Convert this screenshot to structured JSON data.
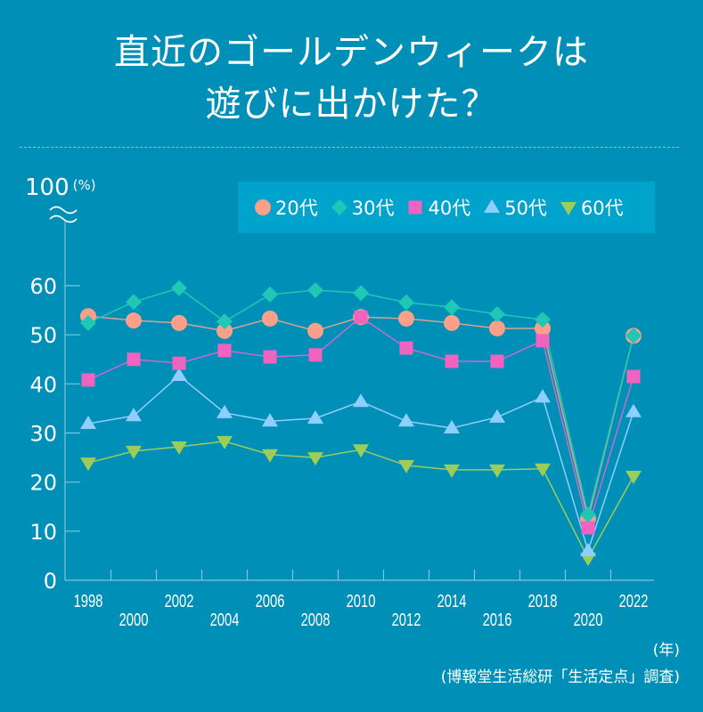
{
  "header": {
    "title_line1": "直近のゴールデンウィークは",
    "title_line2": "遊びに出かけた？"
  },
  "colors": {
    "background": "#008fb6",
    "legend_background": "#00a3cc",
    "axis": "#7fc6d9"
  },
  "y_axis_top_label": "100",
  "y_axis_unit": "(%)",
  "axis_break_icon": "wavy-axis-break",
  "x_unit_label": "(年)",
  "source_label": "(博報堂生活総研「生活定点」調査)",
  "chart_data": {
    "type": "line",
    "title": "直近のゴールデンウィークは遊びに出かけた？",
    "xlabel": "(年)",
    "ylabel": "(%)",
    "x": [
      "1998",
      "2000",
      "2002",
      "2004",
      "2006",
      "2008",
      "2010",
      "2012",
      "2014",
      "2016",
      "2018",
      "2020",
      "2022"
    ],
    "yticks": [
      0,
      10,
      20,
      30,
      40,
      50,
      60
    ],
    "ylim": [
      0,
      60
    ],
    "y_axis_break_top": "100",
    "grid": false,
    "legend_position": "top-right",
    "series": [
      {
        "name": "20代",
        "marker": "circle",
        "color": "#f9a08a",
        "line_color": "#d8a48f",
        "values": [
          53.8,
          52.9,
          52.4,
          50.8,
          53.3,
          50.8,
          53.6,
          53.3,
          52.4,
          51.3,
          51.3,
          12.5,
          49.8
        ]
      },
      {
        "name": "30代",
        "marker": "diamond",
        "color": "#1fc8b4",
        "line_color": "#1fc8b4",
        "values": [
          52.4,
          56.7,
          59.5,
          52.7,
          58.2,
          59.1,
          58.5,
          56.6,
          55.6,
          54.2,
          53.1,
          13.4,
          49.8
        ]
      },
      {
        "name": "40代",
        "marker": "square",
        "color": "#f064c0",
        "line_color": "#c86ad0",
        "values": [
          40.8,
          45.0,
          44.2,
          46.8,
          45.5,
          45.9,
          53.6,
          47.3,
          44.6,
          44.6,
          48.8,
          10.7,
          41.5
        ]
      },
      {
        "name": "50代",
        "marker": "triangle-up",
        "color": "#8fcfff",
        "line_color": "#8fcfff",
        "values": [
          31.9,
          33.5,
          41.7,
          34.1,
          32.4,
          33.0,
          36.4,
          32.4,
          31.0,
          33.2,
          37.3,
          6.0,
          34.3
        ]
      },
      {
        "name": "60代",
        "marker": "triangle-down",
        "color": "#9ccc5a",
        "line_color": "#9ccc5a",
        "values": [
          23.9,
          26.3,
          27.2,
          28.3,
          25.6,
          25.0,
          26.6,
          23.4,
          22.5,
          22.5,
          22.7,
          4.5,
          21.2
        ]
      }
    ]
  }
}
